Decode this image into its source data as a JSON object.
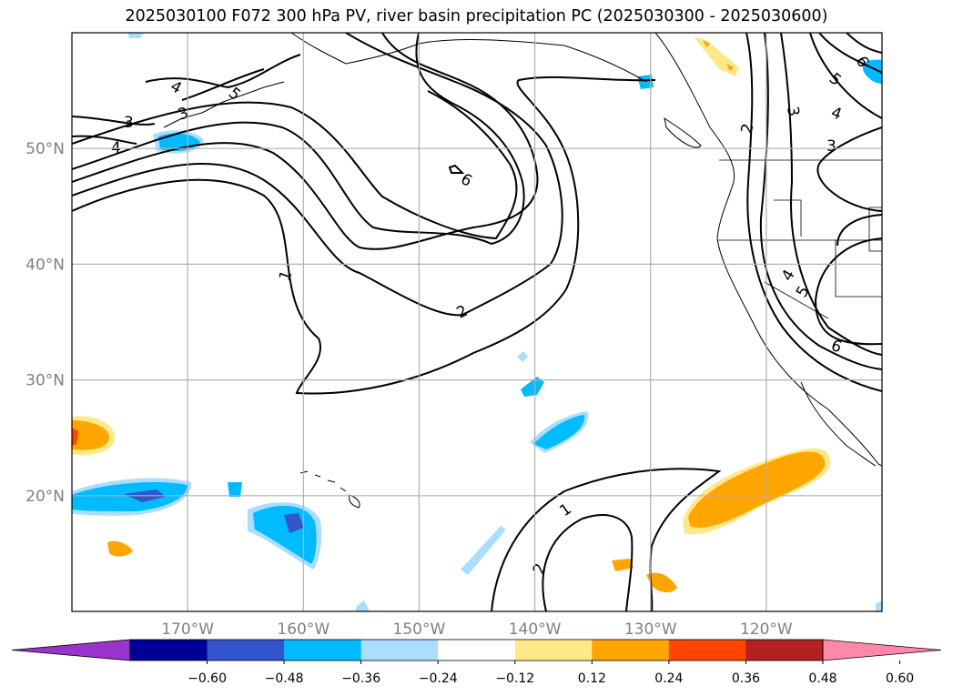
{
  "title": "2025030100 F072 300 hPa PV, river basin precipitation PC (2025030300 - 2025030600)",
  "map": {
    "projection": "PlateCarree",
    "lon_range": [
      -180,
      -110
    ],
    "lat_range": [
      10,
      60
    ],
    "gridlines": true,
    "lon_ticks": [
      {
        "lon": -170,
        "label": "170°W"
      },
      {
        "lon": -160,
        "label": "160°W"
      },
      {
        "lon": -150,
        "label": "150°W"
      },
      {
        "lon": -140,
        "label": "140°W"
      },
      {
        "lon": -130,
        "label": "130°W"
      },
      {
        "lon": -120,
        "label": "120°W"
      }
    ],
    "lat_ticks": [
      {
        "lat": 20,
        "label": "20°N"
      },
      {
        "lat": 30,
        "label": "30°N"
      },
      {
        "lat": 40,
        "label": "40°N"
      },
      {
        "lat": 50,
        "label": "50°N"
      }
    ],
    "pv_contour_labels": [
      "1",
      "2",
      "3",
      "4",
      "5",
      "6"
    ]
  },
  "colorbar": {
    "extend": "both",
    "ticks": [
      "−0.60",
      "−0.48",
      "−0.36",
      "−0.24",
      "−0.12",
      "0.12",
      "0.24",
      "0.36",
      "0.48",
      "0.60"
    ],
    "colors": [
      "#9933cc",
      "#000099",
      "#3355cc",
      "#00bbff",
      "#aaddff",
      "#ffffff",
      "#ffe88a",
      "#ffa500",
      "#ff4500",
      "#b22222",
      "#ff88aa"
    ]
  },
  "colors": {
    "contour": "#000000",
    "coast": "#000000",
    "grid": "#b0b0b0",
    "axis_label": "#808080"
  }
}
